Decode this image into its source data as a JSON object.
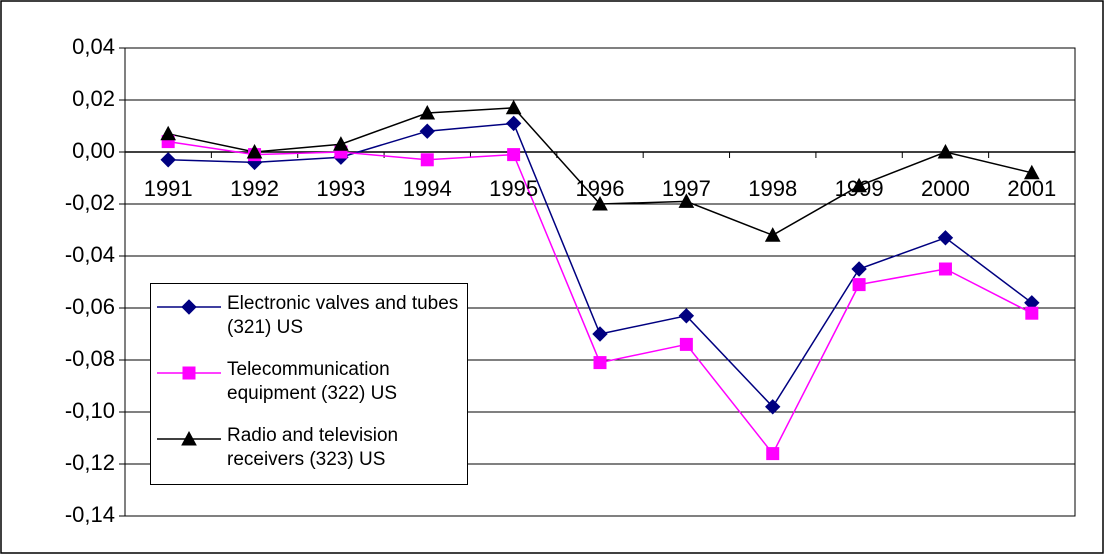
{
  "chart_data": {
    "type": "line",
    "categories": [
      "1991",
      "1992",
      "1993",
      "1994",
      "1995",
      "1996",
      "1997",
      "1998",
      "1999",
      "2000",
      "2001"
    ],
    "series": [
      {
        "name": "Electronic valves and tubes (321) US",
        "color": "#000080",
        "marker": "diamond",
        "values": [
          -0.003,
          -0.004,
          -0.002,
          0.008,
          0.011,
          -0.07,
          -0.063,
          -0.098,
          -0.045,
          -0.033,
          -0.058
        ]
      },
      {
        "name": "Telecommunication equipment (322) US",
        "color": "#ff00ff",
        "marker": "square",
        "values": [
          0.004,
          -0.001,
          0.0,
          -0.003,
          -0.001,
          -0.081,
          -0.074,
          -0.116,
          -0.051,
          -0.045,
          -0.062
        ]
      },
      {
        "name": "Radio and television receivers (323) US",
        "color": "#000000",
        "marker": "triangle",
        "values": [
          0.007,
          0.0,
          0.003,
          0.015,
          0.017,
          -0.02,
          -0.019,
          -0.032,
          -0.013,
          0.0,
          -0.008
        ]
      }
    ],
    "ylim": [
      -0.14,
      0.04
    ],
    "yticks": [
      {
        "value": -0.14,
        "label": "-0,14"
      },
      {
        "value": -0.12,
        "label": "-0,12"
      },
      {
        "value": -0.1,
        "label": "-0,10"
      },
      {
        "value": -0.08,
        "label": "-0,08"
      },
      {
        "value": -0.06,
        "label": "-0,06"
      },
      {
        "value": -0.04,
        "label": "-0,04"
      },
      {
        "value": -0.02,
        "label": "-0,02"
      },
      {
        "value": 0,
        "label": "0,00"
      },
      {
        "value": 0.02,
        "label": "0,02"
      },
      {
        "value": 0.04,
        "label": "0,04"
      }
    ],
    "grid": true,
    "legend": "lower-left"
  }
}
